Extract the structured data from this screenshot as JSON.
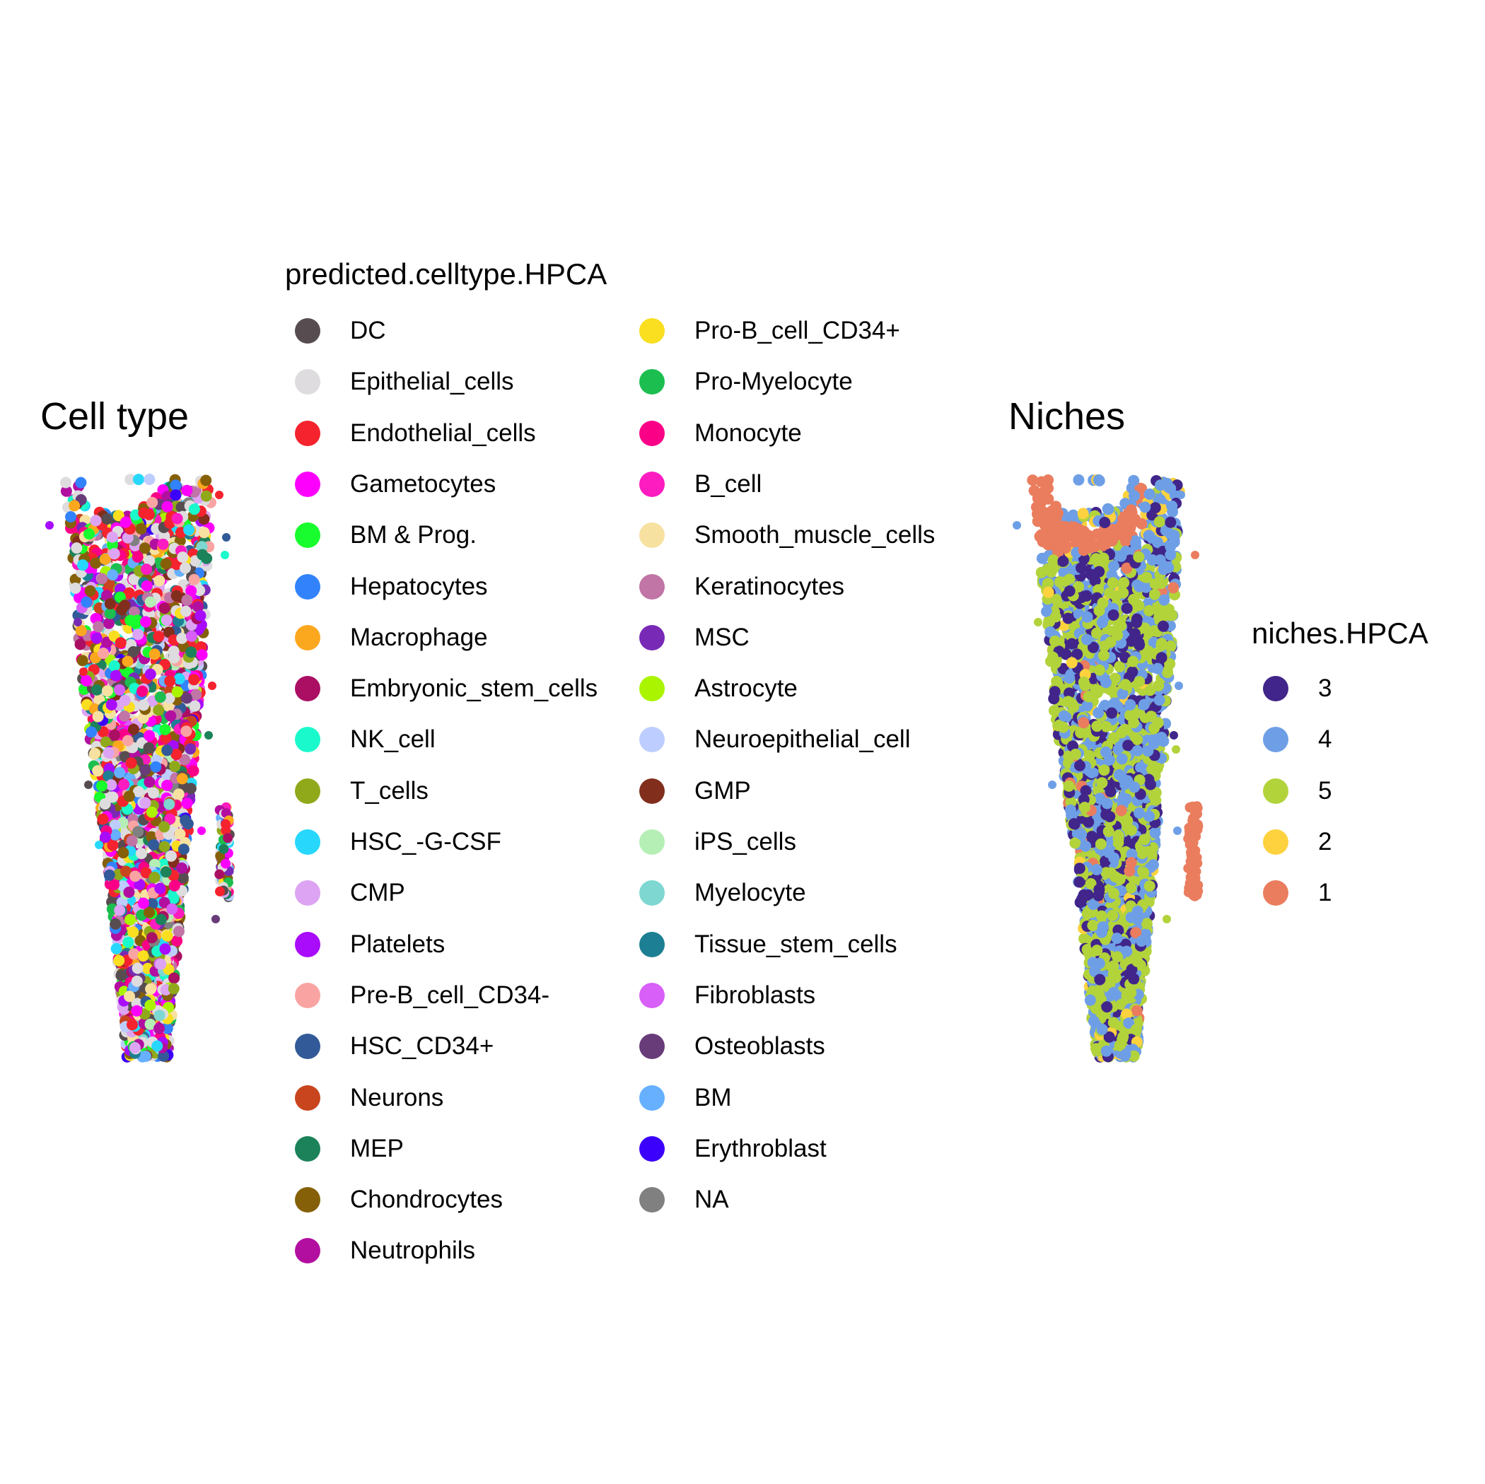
{
  "panels": {
    "left_title": "Cell type",
    "right_title": "Niches"
  },
  "legend_celltype": {
    "title": "predicted.celltype.HPCA",
    "items": [
      {
        "label": "DC",
        "color": "#574D50"
      },
      {
        "label": "Epithelial_cells",
        "color": "#DEDCDE"
      },
      {
        "label": "Endothelial_cells",
        "color": "#F4232E"
      },
      {
        "label": "Gametocytes",
        "color": "#FD00FD"
      },
      {
        "label": "BM & Prog.",
        "color": "#18FD2D"
      },
      {
        "label": "Hepatocytes",
        "color": "#3283FB"
      },
      {
        "label": "Macrophage",
        "color": "#FCA81E"
      },
      {
        "label": "Embryonic_stem_cells",
        "color": "#AA0F63"
      },
      {
        "label": "NK_cell",
        "color": "#1AF9CB"
      },
      {
        "label": "T_cells",
        "color": "#8FA91A"
      },
      {
        "label": "HSC_-G-CSF",
        "color": "#27D8FC"
      },
      {
        "label": "CMP",
        "color": "#DDA4F3"
      },
      {
        "label": "Platelets",
        "color": "#A80CFB"
      },
      {
        "label": "Pre-B_cell_CD34-",
        "color": "#F9A4A2"
      },
      {
        "label": "HSC_CD34+",
        "color": "#325A98"
      },
      {
        "label": "Neurons",
        "color": "#C8451E"
      },
      {
        "label": "MEP",
        "color": "#1C825A"
      },
      {
        "label": "Chondrocytes",
        "color": "#856008"
      },
      {
        "label": "Neutrophils",
        "color": "#B20FA1"
      },
      {
        "label": "Pro-B_cell_CD34+",
        "color": "#F9DF1F"
      },
      {
        "label": "Pro-Myelocyte",
        "color": "#1CBE4F"
      },
      {
        "label": "Monocyte",
        "color": "#FA0087"
      },
      {
        "label": "B_cell",
        "color": "#FC1CBF"
      },
      {
        "label": "Smooth_muscle_cells",
        "color": "#F7E1A0"
      },
      {
        "label": "Keratinocytes",
        "color": "#C075A6"
      },
      {
        "label": "MSC",
        "color": "#782AB6"
      },
      {
        "label": "Astrocyte",
        "color": "#AAF400"
      },
      {
        "label": "Neuroepithelial_cell",
        "color": "#BDCDFF"
      },
      {
        "label": "GMP",
        "color": "#822E1C"
      },
      {
        "label": "iPS_cells",
        "color": "#B5EFB5"
      },
      {
        "label": "Myelocyte",
        "color": "#7ED7D1"
      },
      {
        "label": "Tissue_stem_cells",
        "color": "#1C7F93"
      },
      {
        "label": "Fibroblasts",
        "color": "#D85FF7"
      },
      {
        "label": "Osteoblasts",
        "color": "#683B79"
      },
      {
        "label": "BM",
        "color": "#66B0FF"
      },
      {
        "label": "Erythroblast",
        "color": "#3B00FB"
      },
      {
        "label": "NA",
        "color": "#808080"
      }
    ]
  },
  "legend_niches": {
    "title": "niches.HPCA",
    "items": [
      {
        "label": "3",
        "color": "#41258A"
      },
      {
        "label": "4",
        "color": "#6E9FE6"
      },
      {
        "label": "5",
        "color": "#B3D33B"
      },
      {
        "label": "2",
        "color": "#FDD23E"
      },
      {
        "label": "1",
        "color": "#EA7D5E"
      }
    ]
  },
  "chart_data": [
    {
      "type": "scatter",
      "title": "Cell type",
      "legend_title": "predicted.celltype.HPCA",
      "color_by": "predicted.celltype.HPCA",
      "axes_visible": false,
      "grid": false,
      "legend_placement": "right"
    },
    {
      "type": "scatter",
      "title": "Niches",
      "legend_title": "niches.HPCA",
      "color_by": "niches.HPCA",
      "category_order": [
        "3",
        "4",
        "5",
        "2",
        "1"
      ],
      "axes_visible": false,
      "grid": false,
      "legend_placement": "right"
    }
  ]
}
